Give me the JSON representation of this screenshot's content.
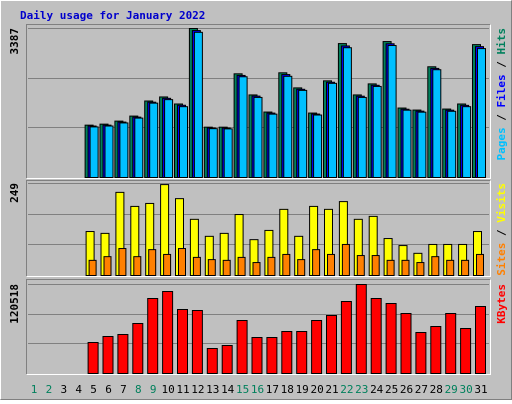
{
  "chart_data": [
    {
      "type": "bar",
      "title": "Daily usage for January 2022",
      "ylim": [
        0,
        3387
      ],
      "yticks": [
        3387
      ],
      "label_separator": " / ",
      "series": [
        {
          "name": "Pages",
          "color": "#00C0FF",
          "values": [
            0,
            0,
            0,
            0,
            1150,
            1170,
            1240,
            1350,
            1690,
            1770,
            1610,
            3300,
            1110,
            1105,
            2290,
            1820,
            1440,
            2300,
            1980,
            1420,
            2140,
            2950,
            1820,
            2070,
            3000,
            1530,
            1485,
            2450,
            1505,
            1610,
            2930
          ]
        },
        {
          "name": "Files",
          "color": "#0000FF",
          "values": [
            0,
            0,
            0,
            0,
            1170,
            1190,
            1260,
            1372,
            1712,
            1800,
            1642,
            3340,
            1125,
            1124,
            2320,
            1850,
            1464,
            2340,
            2005,
            1442,
            2165,
            2990,
            1848,
            2096,
            3040,
            1552,
            1508,
            2480,
            1530,
            1640,
            2975
          ]
        },
        {
          "name": "Hits",
          "color": "#00805C",
          "values": [
            0,
            0,
            0,
            0,
            1190,
            1213,
            1282,
            1396,
            1739,
            1831,
            1671,
            3387,
            1144,
            1144,
            2357,
            1877,
            1488,
            2380,
            2037,
            1465,
            2197,
            3044,
            1877,
            2128,
            3090,
            1579,
            1533,
            2517,
            1556,
            1671,
            3021
          ]
        }
      ]
    },
    {
      "type": "bar",
      "ylim": [
        0,
        249
      ],
      "yticks": [
        249
      ],
      "label_separator": " / ",
      "series": [
        {
          "name": "Sites",
          "color": "#FF8000",
          "values": [
            0,
            0,
            0,
            0,
            41,
            51,
            73,
            51,
            70,
            57,
            73,
            49,
            43,
            41,
            49,
            35,
            49,
            57,
            43,
            70,
            57,
            84,
            54,
            54,
            41,
            41,
            35,
            51,
            41,
            41,
            57
          ]
        },
        {
          "name": "Visits",
          "color": "#FFFF00",
          "values": [
            0,
            0,
            0,
            0,
            119,
            114,
            225,
            187,
            195,
            246,
            208,
            152,
            106,
            114,
            165,
            97,
            122,
            179,
            106,
            187,
            179,
            200,
            152,
            160,
            100,
            81,
            60,
            84,
            84,
            84,
            119
          ]
        }
      ]
    },
    {
      "type": "bar",
      "ylim": [
        0,
        120518
      ],
      "yticks": [
        120518
      ],
      "categories": [
        "1",
        "2",
        "3",
        "4",
        "5",
        "6",
        "7",
        "8",
        "9",
        "10",
        "11",
        "12",
        "13",
        "14",
        "15",
        "16",
        "17",
        "18",
        "19",
        "20",
        "21",
        "22",
        "23",
        "24",
        "25",
        "26",
        "27",
        "28",
        "29",
        "30",
        "31"
      ],
      "label_colors": [
        "#00805C",
        "#00805C",
        "#000000",
        "#000000",
        "#000000",
        "#000000",
        "#000000",
        "#00805C",
        "#00805C",
        "#000000",
        "#000000",
        "#000000",
        "#000000",
        "#000000",
        "#00805C",
        "#00805C",
        "#000000",
        "#000000",
        "#000000",
        "#000000",
        "#000000",
        "#00805C",
        "#00805C",
        "#000000",
        "#000000",
        "#000000",
        "#000000",
        "#000000",
        "#00805C",
        "#00805C",
        "#000000"
      ],
      "series": [
        {
          "name": "KBytes",
          "color": "#FF0000",
          "values": [
            0,
            0,
            0,
            0,
            41978,
            50103,
            52811,
            67707,
            101560,
            111039,
            86664,
            85310,
            33853,
            37916,
            71769,
            48749,
            48749,
            56873,
            56873,
            71769,
            78540,
            97497,
            120518,
            101560,
            94789,
            81248,
            55519,
            63644,
            81248,
            60936,
            90727
          ]
        }
      ]
    }
  ]
}
